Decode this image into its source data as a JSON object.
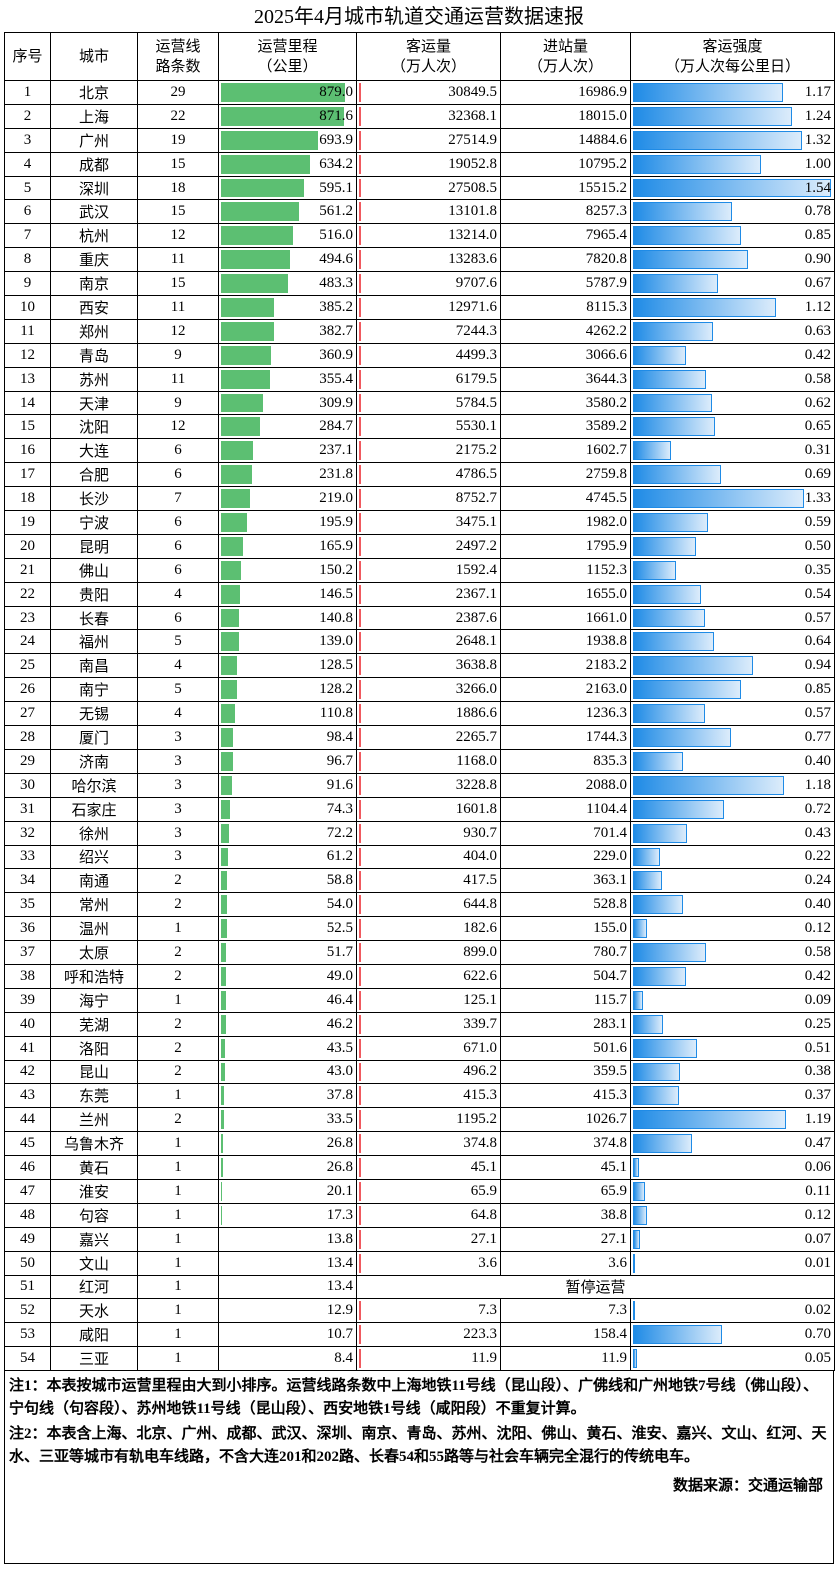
{
  "title": "2025年4月城市轨道交通运营数据速报",
  "table": {
    "header": [
      [
        "序号"
      ],
      [
        "城市"
      ],
      [
        "运营线",
        "路条数"
      ],
      [
        "运营里程",
        "（公里）"
      ],
      [
        "客运量",
        "（万人次）"
      ],
      [
        "进站量",
        "（万人次）"
      ],
      [
        "客运强度",
        "（万人次每公里日）"
      ]
    ],
    "rows": [
      [
        1,
        "北京",
        29,
        "879.0",
        "30849.5",
        "16986.9",
        "1.17"
      ],
      [
        2,
        "上海",
        22,
        "871.6",
        "32368.1",
        "18015.0",
        "1.24"
      ],
      [
        3,
        "广州",
        19,
        "693.9",
        "27514.9",
        "14884.6",
        "1.32"
      ],
      [
        4,
        "成都",
        15,
        "634.2",
        "19052.8",
        "10795.2",
        "1.00"
      ],
      [
        5,
        "深圳",
        18,
        "595.1",
        "27508.5",
        "15515.2",
        "1.54"
      ],
      [
        6,
        "武汉",
        15,
        "561.2",
        "13101.8",
        "8257.3",
        "0.78"
      ],
      [
        7,
        "杭州",
        12,
        "516.0",
        "13214.0",
        "7965.4",
        "0.85"
      ],
      [
        8,
        "重庆",
        11,
        "494.6",
        "13283.6",
        "7820.8",
        "0.90"
      ],
      [
        9,
        "南京",
        15,
        "483.3",
        "9707.6",
        "5787.9",
        "0.67"
      ],
      [
        10,
        "西安",
        11,
        "385.2",
        "12971.6",
        "8115.3",
        "1.12"
      ],
      [
        11,
        "郑州",
        12,
        "382.7",
        "7244.3",
        "4262.2",
        "0.63"
      ],
      [
        12,
        "青岛",
        9,
        "360.9",
        "4499.3",
        "3066.6",
        "0.42"
      ],
      [
        13,
        "苏州",
        11,
        "355.4",
        "6179.5",
        "3644.3",
        "0.58"
      ],
      [
        14,
        "天津",
        9,
        "309.9",
        "5784.5",
        "3580.2",
        "0.62"
      ],
      [
        15,
        "沈阳",
        12,
        "284.7",
        "5530.1",
        "3589.2",
        "0.65"
      ],
      [
        16,
        "大连",
        6,
        "237.1",
        "2175.2",
        "1602.7",
        "0.31"
      ],
      [
        17,
        "合肥",
        6,
        "231.8",
        "4786.5",
        "2759.8",
        "0.69"
      ],
      [
        18,
        "长沙",
        7,
        "219.0",
        "8752.7",
        "4745.5",
        "1.33"
      ],
      [
        19,
        "宁波",
        6,
        "195.9",
        "3475.1",
        "1982.0",
        "0.59"
      ],
      [
        20,
        "昆明",
        6,
        "165.9",
        "2497.2",
        "1795.9",
        "0.50"
      ],
      [
        21,
        "佛山",
        6,
        "150.2",
        "1592.4",
        "1152.3",
        "0.35"
      ],
      [
        22,
        "贵阳",
        4,
        "146.5",
        "2367.1",
        "1655.0",
        "0.54"
      ],
      [
        23,
        "长春",
        6,
        "140.8",
        "2387.6",
        "1661.0",
        "0.57"
      ],
      [
        24,
        "福州",
        5,
        "139.0",
        "2648.1",
        "1938.8",
        "0.64"
      ],
      [
        25,
        "南昌",
        4,
        "128.5",
        "3638.8",
        "2183.2",
        "0.94"
      ],
      [
        26,
        "南宁",
        5,
        "128.2",
        "3266.0",
        "2163.0",
        "0.85"
      ],
      [
        27,
        "无锡",
        4,
        "110.8",
        "1886.6",
        "1236.3",
        "0.57"
      ],
      [
        28,
        "厦门",
        3,
        "98.4",
        "2265.7",
        "1744.3",
        "0.77"
      ],
      [
        29,
        "济南",
        3,
        "96.7",
        "1168.0",
        "835.3",
        "0.40"
      ],
      [
        30,
        "哈尔滨",
        3,
        "91.6",
        "3228.8",
        "2088.0",
        "1.18"
      ],
      [
        31,
        "石家庄",
        3,
        "74.3",
        "1601.8",
        "1104.4",
        "0.72"
      ],
      [
        32,
        "徐州",
        3,
        "72.2",
        "930.7",
        "701.4",
        "0.43"
      ],
      [
        33,
        "绍兴",
        3,
        "61.2",
        "404.0",
        "229.0",
        "0.22"
      ],
      [
        34,
        "南通",
        2,
        "58.8",
        "417.5",
        "363.1",
        "0.24"
      ],
      [
        35,
        "常州",
        2,
        "54.0",
        "644.8",
        "528.8",
        "0.40"
      ],
      [
        36,
        "温州",
        1,
        "52.5",
        "182.6",
        "155.0",
        "0.12"
      ],
      [
        37,
        "太原",
        2,
        "51.7",
        "899.0",
        "780.7",
        "0.58"
      ],
      [
        38,
        "呼和浩特",
        2,
        "49.0",
        "622.6",
        "504.7",
        "0.42"
      ],
      [
        39,
        "海宁",
        1,
        "46.4",
        "125.1",
        "115.7",
        "0.09"
      ],
      [
        40,
        "芜湖",
        2,
        "46.2",
        "339.7",
        "283.1",
        "0.25"
      ],
      [
        41,
        "洛阳",
        2,
        "43.5",
        "671.0",
        "501.6",
        "0.51"
      ],
      [
        42,
        "昆山",
        2,
        "43.0",
        "496.2",
        "359.5",
        "0.38"
      ],
      [
        43,
        "东莞",
        1,
        "37.8",
        "415.3",
        "415.3",
        "0.37"
      ],
      [
        44,
        "兰州",
        2,
        "33.5",
        "1195.2",
        "1026.7",
        "1.19"
      ],
      [
        45,
        "乌鲁木齐",
        1,
        "26.8",
        "374.8",
        "374.8",
        "0.47"
      ],
      [
        46,
        "黄石",
        1,
        "26.8",
        "45.1",
        "45.1",
        "0.06"
      ],
      [
        47,
        "淮安",
        1,
        "20.1",
        "65.9",
        "65.9",
        "0.11"
      ],
      [
        48,
        "句容",
        1,
        "17.3",
        "64.8",
        "38.8",
        "0.12"
      ],
      [
        49,
        "嘉兴",
        1,
        "13.8",
        "27.1",
        "27.1",
        "0.07"
      ],
      [
        50,
        "文山",
        1,
        "13.4",
        "3.6",
        "3.6",
        "0.01"
      ],
      [
        51,
        "红河",
        1,
        "13.4",
        "暂停运营"
      ],
      [
        52,
        "天水",
        1,
        "12.9",
        "7.3",
        "7.3",
        "0.02"
      ],
      [
        53,
        "咸阳",
        1,
        "10.7",
        "223.3",
        "158.4",
        "0.70"
      ],
      [
        54,
        "三亚",
        1,
        "8.4",
        "11.9",
        "11.9",
        "0.05"
      ]
    ]
  },
  "notes": [
    "注1：本表按城市运营里程由大到小排序。运营线路条数中上海地铁11号线（昆山段）、广佛线和广州地铁7号线（佛山段）、宁句线（句容段）、苏州地铁11号线（昆山段）、西安地铁1号线（咸阳段）不重复计算。",
    "注2：本表含上海、北京、广州、成都、武汉、深圳、南京、青岛、苏州、沈阳、佛山、黄石、淮安、嘉兴、文山、红河、天水、三亚等城市有轨电车线路，不含大连201和202路、长春54和55路等与社会车辆完全混行的传统电车。"
  ],
  "source": "数据来源：交通运输部"
}
